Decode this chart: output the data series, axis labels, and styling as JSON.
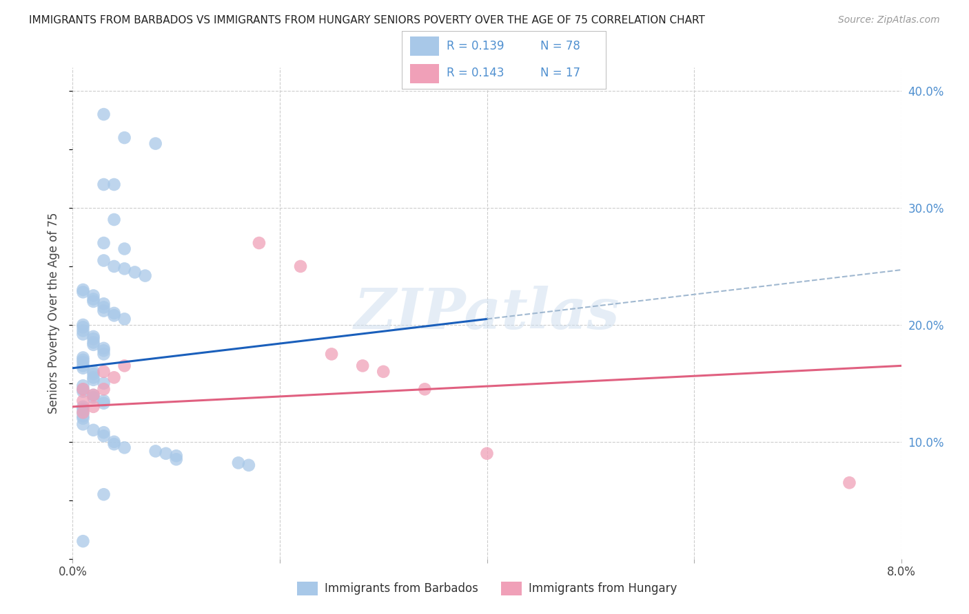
{
  "title": "IMMIGRANTS FROM BARBADOS VS IMMIGRANTS FROM HUNGARY SENIORS POVERTY OVER THE AGE OF 75 CORRELATION CHART",
  "source": "Source: ZipAtlas.com",
  "ylabel": "Seniors Poverty Over the Age of 75",
  "xlim": [
    0,
    0.08
  ],
  "ylim": [
    0,
    0.42
  ],
  "yticks_right": [
    0.1,
    0.2,
    0.3,
    0.4
  ],
  "ytick_labels_right": [
    "10.0%",
    "20.0%",
    "30.0%",
    "40.0%"
  ],
  "barbados_color": "#a8c8e8",
  "hungary_color": "#f0a0b8",
  "trendline_blue_color": "#1a5fbb",
  "trendline_pink_color": "#e06080",
  "trendline_dashed_color": "#a0b8d0",
  "watermark_text": "ZIPatlas",
  "background_color": "#ffffff",
  "grid_color": "#cccccc",
  "barbados_x": [
    0.003,
    0.005,
    0.008,
    0.003,
    0.004,
    0.004,
    0.003,
    0.005,
    0.003,
    0.004,
    0.005,
    0.006,
    0.007,
    0.001,
    0.001,
    0.002,
    0.002,
    0.002,
    0.003,
    0.003,
    0.003,
    0.004,
    0.004,
    0.005,
    0.001,
    0.001,
    0.001,
    0.001,
    0.002,
    0.002,
    0.002,
    0.002,
    0.003,
    0.003,
    0.003,
    0.001,
    0.001,
    0.001,
    0.001,
    0.001,
    0.002,
    0.002,
    0.002,
    0.002,
    0.003,
    0.001,
    0.001,
    0.001,
    0.002,
    0.002,
    0.003,
    0.003,
    0.001,
    0.001,
    0.001,
    0.001,
    0.001,
    0.001,
    0.002,
    0.003,
    0.003,
    0.004,
    0.004,
    0.005,
    0.008,
    0.009,
    0.01,
    0.01,
    0.016,
    0.017,
    0.003,
    0.001
  ],
  "barbados_y": [
    0.38,
    0.36,
    0.355,
    0.32,
    0.32,
    0.29,
    0.27,
    0.265,
    0.255,
    0.25,
    0.248,
    0.245,
    0.242,
    0.23,
    0.228,
    0.225,
    0.222,
    0.22,
    0.218,
    0.215,
    0.212,
    0.21,
    0.208,
    0.205,
    0.2,
    0.198,
    0.195,
    0.192,
    0.19,
    0.188,
    0.185,
    0.183,
    0.18,
    0.178,
    0.175,
    0.172,
    0.17,
    0.168,
    0.165,
    0.163,
    0.16,
    0.158,
    0.155,
    0.153,
    0.15,
    0.148,
    0.145,
    0.143,
    0.14,
    0.138,
    0.135,
    0.133,
    0.13,
    0.128,
    0.125,
    0.122,
    0.12,
    0.115,
    0.11,
    0.108,
    0.105,
    0.1,
    0.098,
    0.095,
    0.092,
    0.09,
    0.088,
    0.085,
    0.082,
    0.08,
    0.055,
    0.015
  ],
  "hungary_x": [
    0.001,
    0.001,
    0.001,
    0.002,
    0.002,
    0.003,
    0.003,
    0.004,
    0.005,
    0.018,
    0.022,
    0.025,
    0.028,
    0.03,
    0.034,
    0.04,
    0.075
  ],
  "hungary_y": [
    0.145,
    0.135,
    0.125,
    0.14,
    0.13,
    0.16,
    0.145,
    0.155,
    0.165,
    0.27,
    0.25,
    0.175,
    0.165,
    0.16,
    0.145,
    0.09,
    0.065
  ],
  "blue_trend_x0": 0.0,
  "blue_trend_x1": 0.04,
  "blue_trend_y0": 0.163,
  "blue_trend_y1": 0.205,
  "pink_trend_x0": 0.0,
  "pink_trend_x1": 0.08,
  "pink_trend_y0": 0.13,
  "pink_trend_y1": 0.165
}
